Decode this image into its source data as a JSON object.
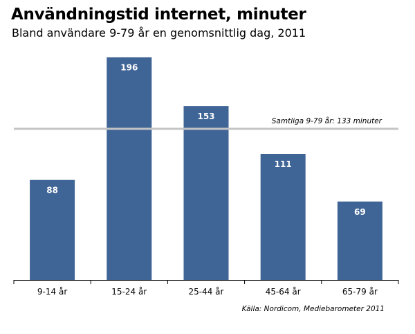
{
  "chart_data": {
    "type": "bar",
    "title": "Användningstid internet, minuter",
    "subtitle": "Bland användare 9-79 år en genomsnittlig dag, 2011",
    "categories": [
      "9-14 år",
      "15-24 år",
      "25-44 år",
      "45-64 år",
      "65-79 år"
    ],
    "values": [
      88,
      196,
      153,
      111,
      69
    ],
    "ylim": [
      0,
      200
    ],
    "xlabel": "",
    "ylabel": "",
    "grid": false,
    "data_labels": true,
    "reference_line": {
      "value": 133,
      "label": "Samtliga 9-79 år: 133 minuter"
    },
    "source": "Källa: Nordicom, Mediebarometer 2011",
    "colors": {
      "bar": "#3f6496",
      "reference_line": "#c4c4c4",
      "bar_label": "#ffffff"
    }
  }
}
